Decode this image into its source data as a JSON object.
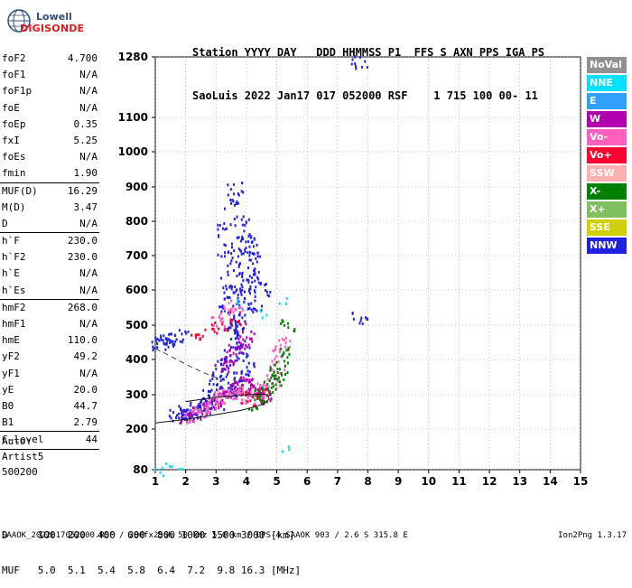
{
  "logo": {
    "line1": "Lowell",
    "line2": "DIGISONDE"
  },
  "header": {
    "line1": "Station YYYY DAY   DDD HHMMSS P1  FFS S AXN PPS IGA PS",
    "line2": "SaoLuis 2022 Jan17 017 052000 RSF    1 715 100 00- 11"
  },
  "param_groups": [
    [
      [
        "foF2",
        "4.700"
      ],
      [
        "foF1",
        "N/A"
      ],
      [
        "foF1p",
        "N/A"
      ],
      [
        "foE",
        "N/A"
      ],
      [
        "foEp",
        "0.35"
      ],
      [
        "fxI",
        "5.25"
      ],
      [
        "foEs",
        "N/A"
      ],
      [
        "fmin",
        "1.90"
      ]
    ],
    [
      [
        "MUF(D)",
        "16.29"
      ],
      [
        "M(D)",
        "3.47"
      ],
      [
        "D",
        "N/A"
      ]
    ],
    [
      [
        "h`F",
        "230.0"
      ],
      [
        "h`F2",
        "230.0"
      ],
      [
        "h`E",
        "N/A"
      ],
      [
        "h`Es",
        "N/A"
      ]
    ],
    [
      [
        "hmF2",
        "268.0"
      ],
      [
        "hmF1",
        "N/A"
      ],
      [
        "hmE",
        "110.0"
      ],
      [
        "yF2",
        "49.2"
      ],
      [
        "yF1",
        "N/A"
      ],
      [
        "yE",
        "20.0"
      ],
      [
        "B0",
        "44.7"
      ],
      [
        "B1",
        "2.79"
      ]
    ],
    [
      [
        "C-level",
        "44"
      ]
    ]
  ],
  "artist": {
    "line1": "Auto:",
    "line2": "Artist5",
    "line3": "500200"
  },
  "legend": [
    {
      "label": "NoVal",
      "color": "#909090"
    },
    {
      "label": "NNE",
      "color": "#00e0ff"
    },
    {
      "label": "E",
      "color": "#30a0ff"
    },
    {
      "label": "W",
      "color": "#b000b0"
    },
    {
      "label": "Vo-",
      "color": "#ff60c0"
    },
    {
      "label": "Vo+",
      "color": "#ff0030"
    },
    {
      "label": "SSW",
      "color": "#ffb0b0"
    },
    {
      "label": "X-",
      "color": "#008000"
    },
    {
      "label": "X+",
      "color": "#80c060"
    },
    {
      "label": "SSE",
      "color": "#d0d000"
    },
    {
      "label": "NNW",
      "color": "#2020e0"
    }
  ],
  "footer": {
    "line1": "D     100  200  400  600  800 1000 1500 3000 [km]",
    "line2": "MUF   5.0  5.1  5.4  5.8  6.4  7.2  9.8 16.3 [MHz]"
  },
  "bottom_line": "SAAOK_2022017052000.RSF / 280fx256h 50 kHz 5.0 km / DPS-4 SAAOK 903 / 2.6 S 315.8 E",
  "version": "Ion2Png 1.3.17",
  "chart_data": {
    "type": "scatter",
    "title": "",
    "xlabel": "",
    "ylabel": "",
    "xlim": [
      1,
      15
    ],
    "ylim": [
      80,
      1280
    ],
    "x_ticks": [
      1,
      2,
      3,
      4,
      5,
      6,
      7,
      8,
      9,
      10,
      11,
      12,
      13,
      14,
      15
    ],
    "y_ticks": [
      80,
      200,
      300,
      400,
      500,
      600,
      700,
      800,
      900,
      1000,
      1100,
      1280
    ],
    "grid": true,
    "curves": [
      {
        "name": "",
        "style": "solid",
        "x": [
          1.0,
          2.0,
          3.0,
          3.8,
          4.3,
          4.6,
          4.75,
          4.7,
          4.4,
          4.0,
          3.5,
          3.0,
          2.5,
          2.0
        ],
        "y": [
          218,
          228,
          242,
          254,
          265,
          275,
          288,
          300,
          302,
          300,
          296,
          292,
          286,
          280
        ]
      },
      {
        "name": "",
        "style": "dashed",
        "x": [
          1.0,
          1.6,
          2.2,
          2.8,
          3.3
        ],
        "y": [
          432,
          405,
          378,
          355,
          340
        ]
      }
    ],
    "series": [
      {
        "name": "NNW",
        "color": "#2020e0",
        "x": [
          1.1,
          1.2,
          1.4,
          1.6,
          1.8,
          2.0,
          2.0,
          2.2,
          2.4,
          2.6,
          2.8,
          3.0,
          3.0,
          3.2,
          3.3,
          3.5,
          3.6,
          3.7,
          3.8,
          3.8,
          3.9,
          4.0,
          4.0,
          4.1,
          4.2,
          3.3,
          3.5,
          3.4,
          3.6,
          3.7,
          3.9,
          4.1,
          3.8,
          3.5,
          3.6,
          3.2,
          3.3,
          4.4,
          4.5,
          4.3,
          3.0,
          2.6,
          2.2,
          1.9,
          1.7,
          3.4,
          3.6,
          3.8,
          4.0,
          3.9,
          3.7,
          3.5,
          7.7,
          7.7
        ],
        "y": [
          450,
          453,
          460,
          470,
          468,
          240,
          250,
          260,
          265,
          280,
          300,
          320,
          350,
          370,
          390,
          420,
          480,
          500,
          520,
          560,
          600,
          620,
          650,
          700,
          720,
          540,
          580,
          620,
          660,
          700,
          740,
          760,
          800,
          850,
          900,
          780,
          720,
          640,
          600,
          560,
          280,
          270,
          255,
          245,
          238,
          310,
          330,
          350,
          380,
          420,
          460,
          500,
          525,
          1265
        ]
      },
      {
        "name": "W",
        "color": "#b000b0",
        "x": [
          2.0,
          2.3,
          2.6,
          2.9,
          3.1,
          3.3,
          3.5,
          3.7,
          3.9,
          4.0,
          4.2,
          4.3,
          4.4,
          4.5,
          4.6,
          3.6,
          3.8,
          4.0,
          3.4,
          3.2
        ],
        "y": [
          235,
          245,
          260,
          275,
          290,
          305,
          320,
          335,
          340,
          330,
          315,
          310,
          305,
          300,
          295,
          430,
          450,
          470,
          400,
          380
        ]
      },
      {
        "name": "Vo-",
        "color": "#ff60c0",
        "x": [
          2.2,
          2.5,
          2.8,
          3.0,
          3.2,
          3.4,
          3.6,
          3.8,
          4.0,
          4.2,
          4.4,
          4.6,
          4.8,
          5.0,
          5.1,
          5.2,
          3.0,
          3.3,
          3.6
        ],
        "y": [
          240,
          255,
          270,
          285,
          295,
          300,
          305,
          300,
          295,
          300,
          310,
          320,
          340,
          380,
          420,
          460,
          520,
          540,
          560
        ]
      },
      {
        "name": "Vo+",
        "color": "#ff0030",
        "x": [
          2.4,
          3.1,
          3.7,
          4.1,
          4.5
        ],
        "y": [
          470,
          500,
          520,
          290,
          300
        ]
      },
      {
        "name": "X-",
        "color": "#008000",
        "x": [
          4.3,
          4.5,
          4.7,
          4.9,
          5.0,
          5.1,
          5.2,
          5.3
        ],
        "y": [
          280,
          300,
          320,
          340,
          360,
          380,
          420,
          500
        ]
      },
      {
        "name": "NNE",
        "color": "#00e0ff",
        "x": [
          1.2,
          1.4,
          1.6,
          3.8,
          4.6,
          5.3,
          5.4
        ],
        "y": [
          85,
          86,
          85,
          560,
          540,
          580,
          140
        ]
      }
    ]
  }
}
